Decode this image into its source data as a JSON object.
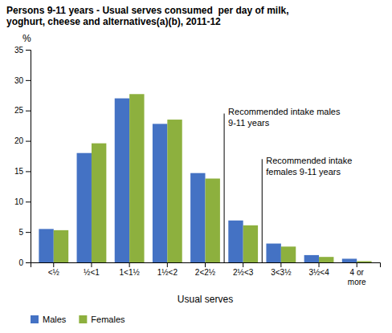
{
  "chart_data": {
    "type": "bar",
    "title": "Persons 9-11 years - Usual serves consumed  per day of milk,\nyoghurt, cheese and alternatives(a)(b), 2011-12",
    "categories": [
      "<½",
      "½<1",
      "1<1½",
      "1½<2",
      "2<2½",
      "2½<3",
      "3<3½",
      "3½<4",
      "4 or\nmore"
    ],
    "series": [
      {
        "name": "Males",
        "color": "#4472C4",
        "values": [
          5.5,
          18.0,
          27.0,
          22.8,
          14.7,
          6.9,
          3.1,
          1.2,
          0.6
        ]
      },
      {
        "name": "Females",
        "color": "#8DB03E",
        "values": [
          5.3,
          19.6,
          27.7,
          23.5,
          13.8,
          6.1,
          2.6,
          0.9,
          0.2
        ]
      }
    ],
    "xlabel": "Usual serves",
    "ylabel": "%",
    "ylim": [
      0,
      35
    ],
    "yticks": [
      0,
      5,
      10,
      15,
      20,
      25,
      30,
      35
    ],
    "annotations": [
      "Recommended intake males\n9-11 years",
      "Recommended intake\nfemales 9-11 years"
    ],
    "grid": false,
    "legend": "bottom"
  }
}
